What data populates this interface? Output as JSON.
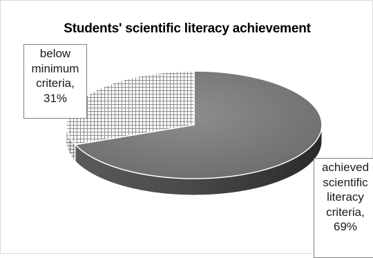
{
  "chart_data": {
    "type": "pie",
    "title": "Students' scientific literacy achievement",
    "slices": [
      {
        "label_lines": [
          "achieved",
          "scientific",
          "literacy",
          "criteria,",
          "69%"
        ],
        "value": 69,
        "color": "#7a7a7a",
        "pattern": "solid-gradient"
      },
      {
        "label_lines": [
          "below",
          "minimum",
          "criteria,",
          "31%"
        ],
        "value": 31,
        "color": "#ffffff",
        "pattern": "crosshatch"
      }
    ],
    "style": "3d-pie",
    "legend": "none",
    "data_labels": "callouts"
  }
}
